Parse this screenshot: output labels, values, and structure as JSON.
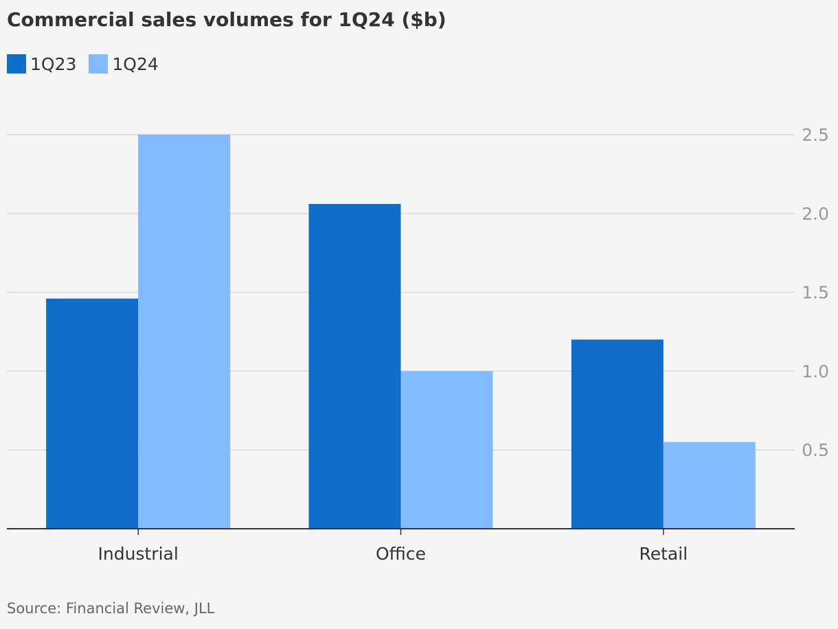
{
  "colors": {
    "background": "#f5f5f5",
    "series_1Q23": "#116dca",
    "series_1Q24": "#82bbff",
    "grid": "#dcdcdc",
    "axis": "#333333",
    "tick_label": "#999999"
  },
  "source": "Source: Financial Review, JLL",
  "chart_data": {
    "type": "bar",
    "title": "Commercial sales volumes for 1Q24 ($b)",
    "categories": [
      "Industrial",
      "Office",
      "Retail"
    ],
    "series": [
      {
        "name": "1Q23",
        "values": [
          1.46,
          2.06,
          1.2
        ]
      },
      {
        "name": "1Q24",
        "values": [
          2.5,
          1.0,
          0.55
        ]
      }
    ],
    "ylim": [
      0,
      2.5
    ],
    "yticks": [
      "0.5",
      "1.0",
      "1.5",
      "2.0",
      "2.5"
    ],
    "ytick_values": [
      0.5,
      1.0,
      1.5,
      2.0,
      2.5
    ],
    "grid": true,
    "legend": "top-left",
    "yaxis_side": "right"
  }
}
